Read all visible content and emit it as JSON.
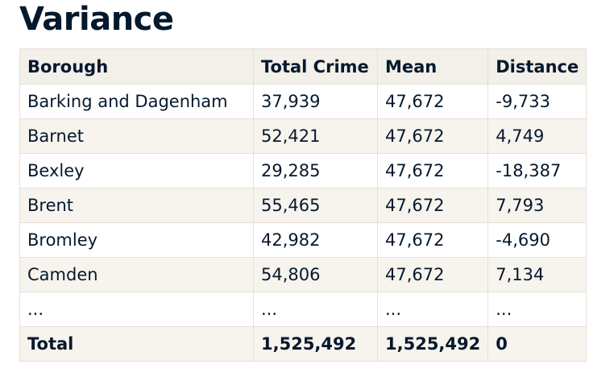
{
  "title": "Variance",
  "table": {
    "headers": [
      "Borough",
      "Total Crime",
      "Mean",
      "Distance"
    ],
    "rows": [
      [
        "Barking and Dagenham",
        "37,939",
        "47,672",
        "-9,733"
      ],
      [
        "Barnet",
        "52,421",
        "47,672",
        "4,749"
      ],
      [
        "Bexley",
        "29,285",
        "47,672",
        "-18,387"
      ],
      [
        "Brent",
        "55,465",
        "47,672",
        "7,793"
      ],
      [
        "Bromley",
        "42,982",
        "47,672",
        "-4,690"
      ],
      [
        "Camden",
        "54,806",
        "47,672",
        "7,134"
      ],
      [
        "...",
        "...",
        "...",
        "..."
      ]
    ],
    "total": [
      "Total",
      "1,525,492",
      "1,525,492",
      "0"
    ]
  }
}
